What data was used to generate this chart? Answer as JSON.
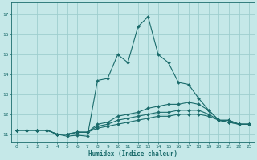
{
  "xlabel": "Humidex (Indice chaleur)",
  "bg_color": "#c5e8e8",
  "grid_color": "#9ecece",
  "line_color": "#1a6b6b",
  "xlim": [
    -0.5,
    23.5
  ],
  "ylim": [
    10.6,
    17.6
  ],
  "yticks": [
    11,
    12,
    13,
    14,
    15,
    16,
    17
  ],
  "xticks": [
    0,
    1,
    2,
    3,
    4,
    5,
    6,
    7,
    8,
    9,
    10,
    11,
    12,
    13,
    14,
    15,
    16,
    17,
    18,
    19,
    20,
    21,
    22,
    23
  ],
  "lines": [
    {
      "x": [
        0,
        1,
        2,
        3,
        4,
        5,
        6,
        7,
        8,
        9,
        10,
        11,
        12,
        13,
        14,
        15,
        16,
        17,
        18,
        19,
        20,
        21,
        22,
        23
      ],
      "y": [
        11.2,
        11.2,
        11.2,
        11.2,
        11.0,
        10.9,
        10.95,
        10.9,
        13.7,
        13.8,
        15.0,
        14.6,
        16.4,
        16.9,
        15.0,
        14.6,
        13.6,
        13.5,
        12.8,
        12.2,
        11.7,
        11.7,
        11.5,
        11.5
      ]
    },
    {
      "x": [
        0,
        1,
        2,
        3,
        4,
        5,
        6,
        7,
        8,
        9,
        10,
        11,
        12,
        13,
        14,
        15,
        16,
        17,
        18,
        19,
        20,
        21,
        22,
        23
      ],
      "y": [
        11.2,
        11.2,
        11.2,
        11.2,
        11.0,
        11.0,
        11.1,
        11.1,
        11.5,
        11.6,
        11.9,
        12.0,
        12.1,
        12.3,
        12.4,
        12.5,
        12.5,
        12.6,
        12.5,
        12.2,
        11.7,
        11.7,
        11.5,
        11.5
      ]
    },
    {
      "x": [
        0,
        1,
        2,
        3,
        4,
        5,
        6,
        7,
        8,
        9,
        10,
        11,
        12,
        13,
        14,
        15,
        16,
        17,
        18,
        19,
        20,
        21,
        22,
        23
      ],
      "y": [
        11.2,
        11.2,
        11.2,
        11.2,
        11.0,
        11.0,
        11.1,
        11.1,
        11.4,
        11.5,
        11.7,
        11.8,
        11.9,
        12.0,
        12.1,
        12.1,
        12.2,
        12.2,
        12.2,
        12.0,
        11.7,
        11.6,
        11.5,
        11.5
      ]
    },
    {
      "x": [
        0,
        1,
        2,
        3,
        4,
        5,
        6,
        7,
        8,
        9,
        10,
        11,
        12,
        13,
        14,
        15,
        16,
        17,
        18,
        19,
        20,
        21,
        22,
        23
      ],
      "y": [
        11.2,
        11.2,
        11.2,
        11.2,
        11.0,
        11.0,
        11.1,
        11.1,
        11.3,
        11.4,
        11.5,
        11.6,
        11.7,
        11.8,
        11.9,
        11.9,
        12.0,
        12.0,
        12.0,
        11.9,
        11.7,
        11.6,
        11.5,
        11.5
      ]
    }
  ]
}
